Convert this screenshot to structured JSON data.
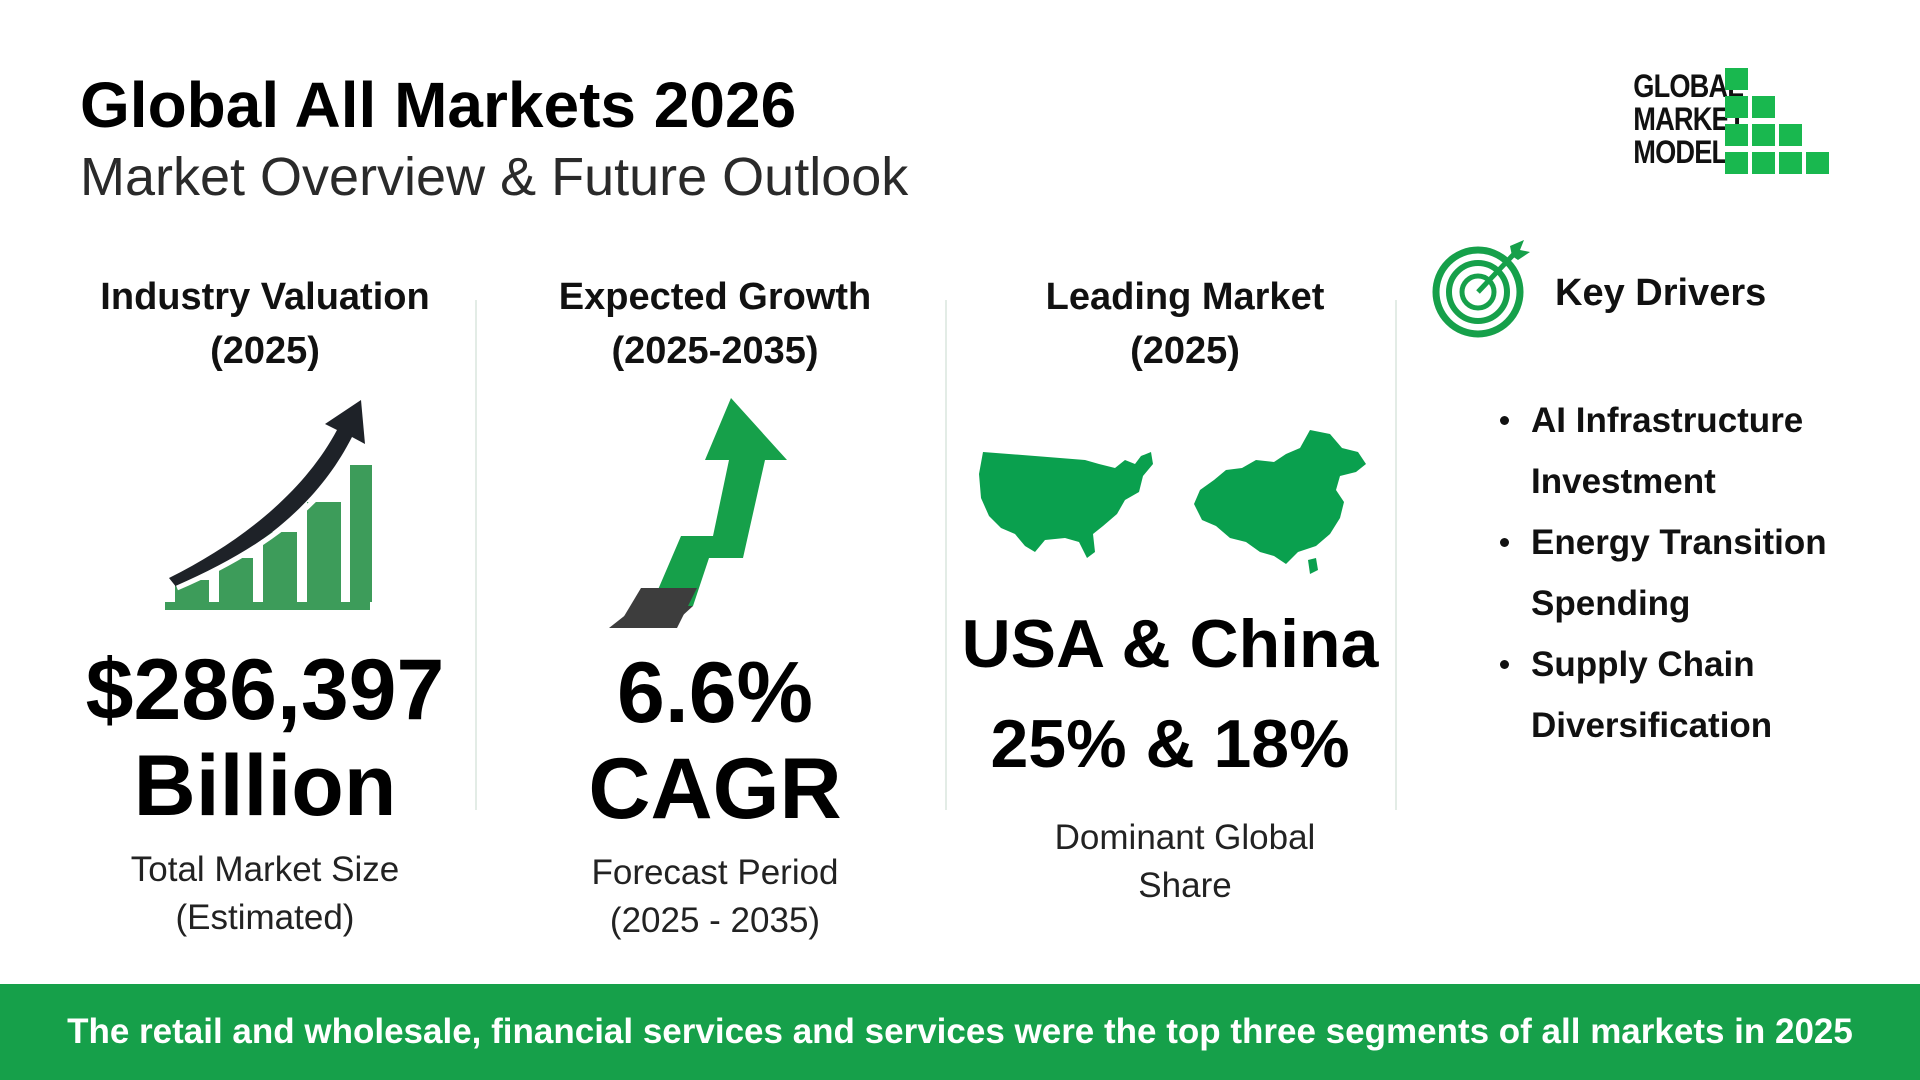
{
  "header": {
    "title": "Global All Markets 2026",
    "subtitle": "Market Overview & Future Outlook"
  },
  "logo": {
    "lines": [
      "GLOBAL",
      "MARKET",
      "MODEL"
    ],
    "color": "#19b84f"
  },
  "valuation": {
    "heading_line1": "Industry Valuation",
    "heading_line2": "(2025)",
    "value_line1": "$286,397",
    "value_line2": "Billion",
    "caption_line1": "Total Market Size",
    "caption_line2": "(Estimated)",
    "icon": "growth-bar-chart-icon"
  },
  "growth": {
    "heading_line1": "Expected Growth",
    "heading_line2": "(2025-2035)",
    "value_line1": "6.6%",
    "value_line2": "CAGR",
    "caption_line1": "Forecast Period",
    "caption_line2": "(2025 - 2035)",
    "icon": "upward-arrow-icon"
  },
  "leading": {
    "heading_line1": "Leading Market",
    "heading_line2": "(2025)",
    "value_line1": "USA & China",
    "value_line2": "25% & 18%",
    "caption_line1": "Dominant Global",
    "caption_line2": "Share",
    "icons": [
      "usa-map-icon",
      "china-map-icon"
    ]
  },
  "drivers": {
    "title": "Key Drivers",
    "icon": "target-icon",
    "items": [
      "AI Infrastructure Investment",
      "Energy Transition Spending",
      "Supply Chain Diversification"
    ]
  },
  "footer": {
    "text": "The retail and wholesale, financial services and services were the top three segments of all markets in 2025"
  },
  "colors": {
    "accent": "#16a04a",
    "map_green": "#0aa04e",
    "dark": "#1e2228"
  }
}
